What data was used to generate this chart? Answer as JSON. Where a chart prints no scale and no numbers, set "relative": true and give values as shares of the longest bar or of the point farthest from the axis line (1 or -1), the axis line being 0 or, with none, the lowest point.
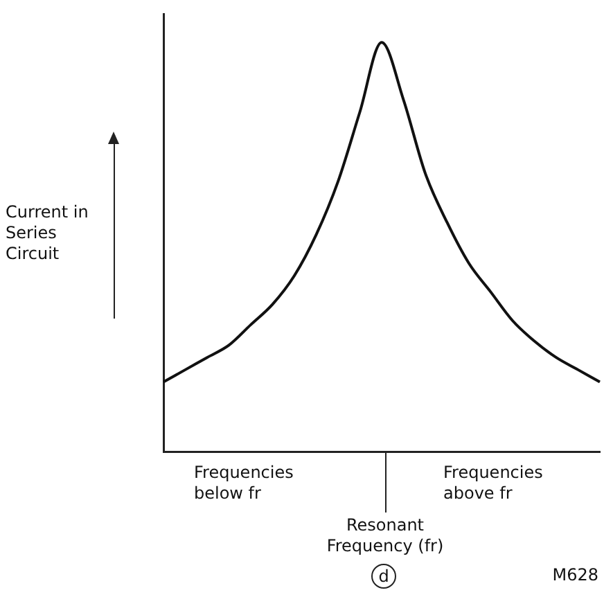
{
  "chart_data": {
    "type": "line",
    "relative": true,
    "ylabel": "Current in Series Circuit",
    "categories": [
      null,
      null,
      null,
      null,
      null,
      null,
      null,
      null,
      null,
      null,
      null,
      null,
      null,
      null,
      null,
      null,
      null,
      null,
      null,
      null,
      null
    ],
    "values": [
      0.17,
      0.2,
      0.23,
      0.26,
      0.31,
      0.36,
      0.43,
      0.53,
      0.66,
      0.83,
      1,
      0.86,
      0.68,
      0.56,
      0.46,
      0.39,
      0.32,
      0.27,
      0.23,
      0.2,
      0.17
    ],
    "color": "#111111",
    "marker": "none",
    "line_style": "solid",
    "grid": false,
    "legend": false,
    "annotations": [
      "Frequencies below fr",
      "Resonant Frequency (fr)",
      "Frequencies above fr",
      "d",
      "M628"
    ]
  }
}
